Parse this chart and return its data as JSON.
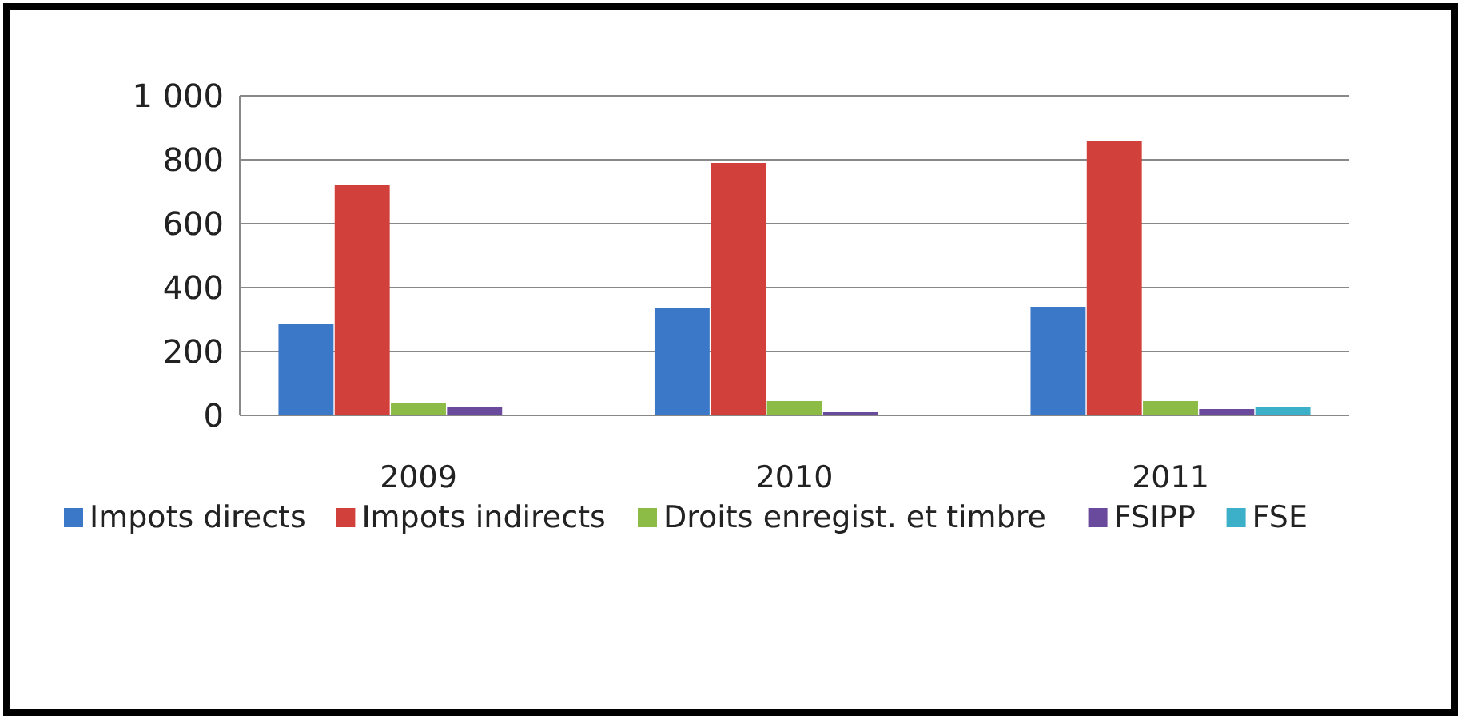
{
  "chart_data": {
    "type": "bar",
    "categories": [
      "2009",
      "2010",
      "2011"
    ],
    "series": [
      {
        "name": "Impots directs",
        "color": "#3c78c8",
        "values": [
          285,
          335,
          340
        ]
      },
      {
        "name": "Impots indirects",
        "color": "#d2403c",
        "values": [
          720,
          790,
          860
        ]
      },
      {
        "name": "Droits enregist. et timbre",
        "color": "#8cbc46",
        "values": [
          40,
          45,
          45
        ]
      },
      {
        "name": "FSIPP",
        "color": "#6a4a9c",
        "values": [
          25,
          10,
          20
        ]
      },
      {
        "name": "FSE",
        "color": "#3cb0c8",
        "values": [
          null,
          null,
          25
        ]
      }
    ],
    "ylim": [
      0,
      1000
    ],
    "yticks": [
      0,
      {
        "value": 200,
        "label": "200"
      },
      400,
      600,
      800,
      {
        "value": 1000,
        "label": "1 000"
      }
    ],
    "grid": "y",
    "legend": "bottom"
  }
}
